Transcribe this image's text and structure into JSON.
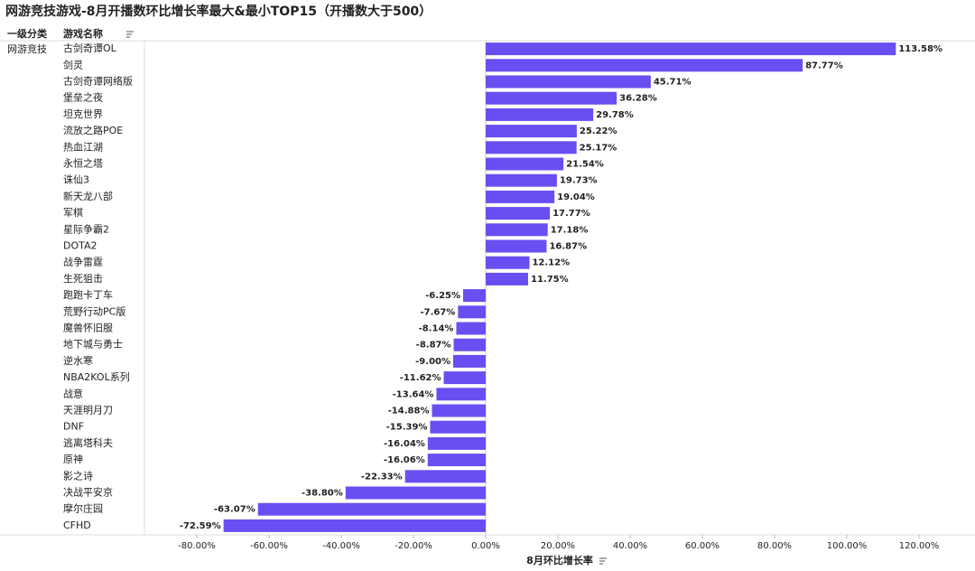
{
  "chart_data": {
    "type": "barh",
    "title": "网游竞技游戏-8月开播数环比增长率最大&最小TOP15（开播数大于500）",
    "group_header": "一级分类",
    "category_header": "游戏名称",
    "group_label": "网游竞技",
    "x_label": "8月环比增长率",
    "categories": [
      "古剑奇谭OL",
      "剑灵",
      "古剑奇谭网络版",
      "堡垒之夜",
      "坦克世界",
      "流放之路POE",
      "热血江湖",
      "永恒之塔",
      "诛仙3",
      "新天龙八部",
      "军棋",
      "星际争霸2",
      "DOTA2",
      "战争雷霆",
      "生死狙击",
      "跑跑卡丁车",
      "荒野行动PC版",
      "魔兽怀旧服",
      "地下城与勇士",
      "逆水寒",
      "NBA2KOL系列",
      "战意",
      "天涯明月刀",
      "DNF",
      "逃离塔科夫",
      "原神",
      "影之诗",
      "决战平安京",
      "摩尔庄园",
      "CFHD"
    ],
    "values": [
      113.58,
      87.77,
      45.71,
      36.28,
      29.78,
      25.22,
      25.17,
      21.54,
      19.73,
      19.04,
      17.77,
      17.18,
      16.87,
      12.12,
      11.75,
      -6.25,
      -7.67,
      -8.14,
      -8.87,
      -9.0,
      -11.62,
      -13.64,
      -14.88,
      -15.39,
      -16.04,
      -16.06,
      -22.33,
      -38.8,
      -63.07,
      -72.59
    ],
    "value_labels": [
      "113.58%",
      "87.77%",
      "45.71%",
      "36.28%",
      "29.78%",
      "25.22%",
      "25.17%",
      "21.54%",
      "19.73%",
      "19.04%",
      "17.77%",
      "17.18%",
      "16.87%",
      "12.12%",
      "11.75%",
      "-6.25%",
      "-7.67%",
      "-8.14%",
      "-8.87%",
      "-9.00%",
      "-11.62%",
      "-13.64%",
      "-14.88%",
      "-15.39%",
      "-16.04%",
      "-16.06%",
      "-22.33%",
      "-38.80%",
      "-63.07%",
      "-72.59%"
    ],
    "color": "#6a4ef2",
    "xlim": [
      -94.5,
      130.5
    ],
    "xticks": [
      {
        "value": -80,
        "label": "-80.00%"
      },
      {
        "value": -60,
        "label": "-60.00%"
      },
      {
        "value": -40,
        "label": "-40.00%"
      },
      {
        "value": -20,
        "label": "-20.00%"
      },
      {
        "value": 0,
        "label": "0.00%"
      },
      {
        "value": 20,
        "label": "20.00%"
      },
      {
        "value": 40,
        "label": "40.00%"
      },
      {
        "value": 60,
        "label": "60.00%"
      },
      {
        "value": 80,
        "label": "80.00%"
      },
      {
        "value": 100,
        "label": "100.00%"
      },
      {
        "value": 120,
        "label": "120.00%"
      }
    ],
    "grid": false
  }
}
